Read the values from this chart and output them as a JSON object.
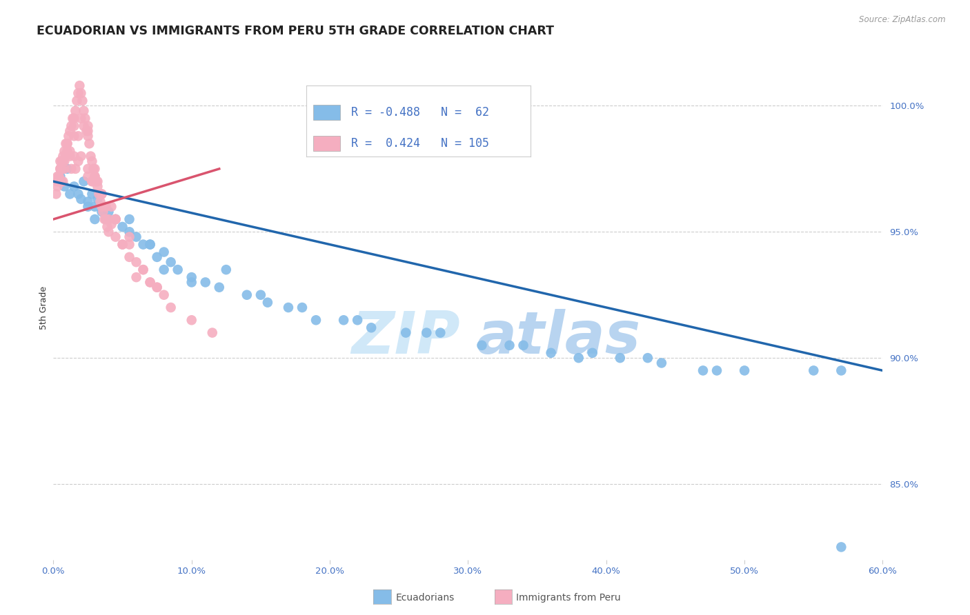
{
  "title": "ECUADORIAN VS IMMIGRANTS FROM PERU 5TH GRADE CORRELATION CHART",
  "source": "Source: ZipAtlas.com",
  "ylabel": "5th Grade",
  "x_min": 0.0,
  "x_max": 60.0,
  "y_min": 82.0,
  "y_max": 102.0,
  "y_ticks": [
    85.0,
    90.0,
    95.0,
    100.0
  ],
  "y_tick_labels": [
    "85.0%",
    "90.0%",
    "95.0%",
    "100.0%"
  ],
  "blue_R": -0.488,
  "blue_N": 62,
  "pink_R": 0.424,
  "pink_N": 105,
  "blue_color": "#85bce8",
  "pink_color": "#f5aec0",
  "blue_line_color": "#2166ac",
  "pink_line_color": "#d9546e",
  "legend_label_blue": "Ecuadorians",
  "legend_label_pink": "Immigrants from Peru",
  "watermark_zip": "ZIP",
  "watermark_atlas": "atlas",
  "blue_line_x0": 0.0,
  "blue_line_y0": 97.0,
  "blue_line_x1": 60.0,
  "blue_line_y1": 89.5,
  "pink_line_x0": 0.0,
  "pink_line_y0": 95.5,
  "pink_line_x1": 12.0,
  "pink_line_y1": 97.5,
  "blue_x": [
    0.5,
    0.8,
    1.0,
    1.2,
    1.5,
    1.8,
    2.0,
    2.2,
    2.5,
    2.8,
    3.0,
    3.2,
    3.5,
    3.8,
    4.0,
    4.5,
    5.0,
    5.5,
    6.0,
    6.5,
    7.0,
    7.5,
    8.0,
    8.5,
    9.0,
    10.0,
    11.0,
    12.0,
    14.0,
    15.5,
    17.0,
    19.0,
    21.0,
    23.0,
    25.5,
    28.0,
    31.0,
    34.0,
    36.0,
    39.0,
    41.0,
    44.0,
    47.0,
    50.0,
    2.5,
    3.0,
    4.0,
    5.5,
    7.0,
    8.0,
    10.0,
    12.5,
    15.0,
    18.0,
    22.0,
    27.0,
    33.0,
    38.0,
    43.0,
    48.0,
    55.0,
    57.0
  ],
  "blue_y": [
    97.2,
    96.8,
    97.5,
    96.5,
    96.8,
    96.5,
    96.3,
    97.0,
    96.2,
    96.5,
    96.0,
    96.3,
    95.8,
    95.5,
    95.8,
    95.5,
    95.2,
    95.5,
    94.8,
    94.5,
    94.5,
    94.0,
    94.2,
    93.8,
    93.5,
    93.2,
    93.0,
    92.8,
    92.5,
    92.2,
    92.0,
    91.5,
    91.5,
    91.2,
    91.0,
    91.0,
    90.5,
    90.5,
    90.2,
    90.2,
    90.0,
    89.8,
    89.5,
    89.5,
    96.0,
    95.5,
    95.5,
    95.0,
    94.5,
    93.5,
    93.0,
    93.5,
    92.5,
    92.0,
    91.5,
    91.0,
    90.5,
    90.0,
    90.0,
    89.5,
    89.5,
    89.5
  ],
  "pink_x": [
    0.2,
    0.3,
    0.4,
    0.5,
    0.6,
    0.7,
    0.8,
    0.9,
    1.0,
    1.1,
    1.2,
    1.3,
    1.4,
    1.5,
    1.6,
    1.7,
    1.8,
    1.9,
    2.0,
    2.1,
    2.2,
    2.3,
    2.4,
    2.5,
    2.6,
    2.7,
    2.8,
    2.9,
    3.0,
    3.1,
    3.2,
    3.3,
    3.4,
    3.5,
    3.6,
    3.7,
    3.8,
    3.9,
    4.0,
    4.2,
    4.5,
    5.0,
    5.5,
    6.0,
    6.5,
    7.0,
    7.5,
    8.0,
    0.4,
    0.6,
    0.8,
    1.0,
    1.5,
    2.0,
    2.5,
    3.0,
    0.3,
    0.7,
    1.2,
    1.8,
    2.5,
    3.5,
    4.5,
    5.5,
    0.5,
    1.0,
    1.5,
    2.2,
    3.2,
    4.2,
    6.0,
    0.4,
    0.9,
    1.6,
    2.8,
    4.0,
    0.5,
    1.3,
    2.5,
    3.8,
    5.5,
    7.5,
    0.6,
    1.8,
    3.0,
    0.3,
    1.0,
    2.0,
    3.5,
    0.8,
    1.5,
    2.8,
    4.5,
    0.4,
    1.2,
    3.0,
    6.5,
    0.7,
    2.5,
    5.0,
    4.5,
    7.0,
    8.5,
    10.0,
    11.5
  ],
  "pink_y": [
    96.5,
    96.8,
    97.0,
    97.5,
    97.8,
    98.0,
    98.2,
    98.5,
    98.5,
    98.8,
    99.0,
    99.2,
    99.5,
    99.5,
    99.8,
    100.2,
    100.5,
    100.8,
    100.5,
    100.2,
    99.8,
    99.5,
    99.0,
    98.8,
    98.5,
    98.0,
    97.8,
    97.5,
    97.2,
    97.0,
    96.8,
    96.5,
    96.2,
    96.0,
    95.8,
    95.5,
    95.5,
    95.2,
    95.0,
    95.3,
    94.8,
    94.5,
    94.0,
    93.8,
    93.5,
    93.0,
    92.8,
    92.5,
    97.2,
    97.5,
    97.8,
    98.5,
    99.2,
    99.5,
    99.0,
    97.5,
    97.0,
    97.8,
    98.2,
    98.8,
    99.2,
    96.5,
    95.5,
    94.5,
    97.5,
    98.5,
    98.8,
    99.2,
    97.0,
    96.0,
    93.2,
    97.2,
    98.0,
    97.5,
    97.0,
    95.5,
    97.8,
    97.5,
    97.2,
    96.0,
    94.8,
    92.8,
    97.0,
    97.8,
    97.0,
    97.2,
    98.2,
    98.0,
    96.5,
    97.5,
    98.0,
    97.0,
    95.5,
    97.0,
    98.0,
    97.2,
    93.5,
    97.0,
    97.5,
    94.5,
    95.5,
    93.0,
    92.0,
    91.5,
    91.0
  ],
  "blue_outlier_x": [
    57.0
  ],
  "blue_outlier_y": [
    82.5
  ]
}
